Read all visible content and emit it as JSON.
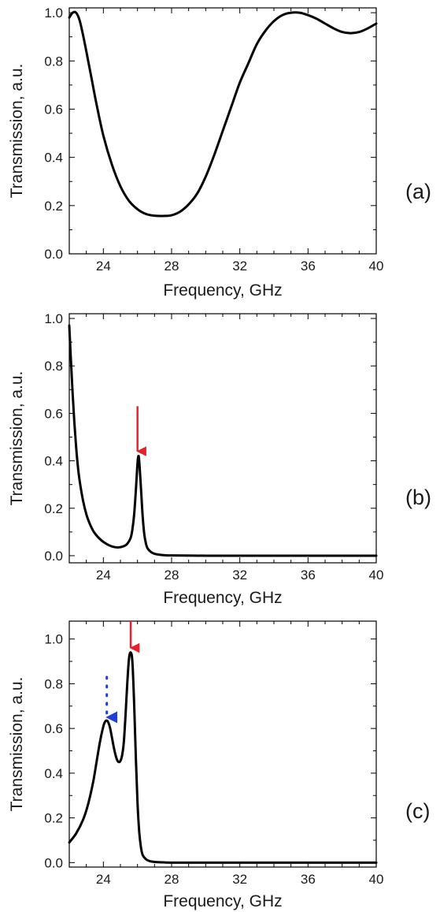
{
  "chart_data": [
    {
      "type": "line",
      "panel_label": "(a)",
      "xlabel": "Frequency, GHz",
      "ylabel": "Transmission, a.u.",
      "xlim": [
        22,
        40
      ],
      "ylim": [
        0.0,
        1.02
      ],
      "x_ticks": [
        24,
        28,
        32,
        36,
        40
      ],
      "y_ticks": [
        0.0,
        0.2,
        0.4,
        0.6,
        0.8,
        1.0
      ],
      "y_tick_labels": [
        "0.0",
        "0.2",
        "0.4",
        "0.6",
        "0.8",
        "1.0"
      ],
      "series": [
        {
          "x": [
            22.0,
            22.2,
            22.4,
            22.6,
            22.8,
            23.0,
            23.3,
            23.6,
            24.0,
            24.5,
            25.0,
            25.5,
            26.0,
            26.5,
            27.0,
            27.5,
            28.0,
            28.5,
            29.0,
            29.5,
            30.0,
            30.5,
            31.0,
            31.5,
            32.0,
            32.5,
            33.0,
            33.5,
            34.0,
            34.5,
            35.0,
            35.5,
            36.0,
            36.5,
            37.0,
            37.5,
            38.0,
            38.5,
            39.0,
            39.5,
            40.0
          ],
          "y": [
            0.98,
            1.0,
            1.0,
            0.97,
            0.91,
            0.84,
            0.73,
            0.62,
            0.49,
            0.37,
            0.28,
            0.22,
            0.185,
            0.165,
            0.158,
            0.157,
            0.16,
            0.175,
            0.205,
            0.25,
            0.32,
            0.41,
            0.51,
            0.61,
            0.71,
            0.79,
            0.87,
            0.925,
            0.965,
            0.99,
            1.0,
            1.0,
            0.99,
            0.975,
            0.955,
            0.935,
            0.92,
            0.915,
            0.92,
            0.935,
            0.955
          ]
        }
      ],
      "annotations": []
    },
    {
      "type": "line",
      "panel_label": "(b)",
      "xlabel": "Frequency, GHz",
      "ylabel": "Transmission, a.u.",
      "xlim": [
        22,
        40
      ],
      "ylim": [
        -0.03,
        1.02
      ],
      "x_ticks": [
        24,
        28,
        32,
        36,
        40
      ],
      "y_ticks": [
        0.0,
        0.2,
        0.4,
        0.6,
        0.8,
        1.0
      ],
      "y_tick_labels": [
        "0.0",
        "0.2",
        "0.4",
        "0.6",
        "0.8",
        "1.0"
      ],
      "series": [
        {
          "x": [
            22.0,
            22.1,
            22.2,
            22.3,
            22.4,
            22.5,
            22.6,
            22.8,
            23.0,
            23.2,
            23.4,
            23.6,
            23.8,
            24.0,
            24.3,
            24.6,
            24.9,
            25.2,
            25.4,
            25.6,
            25.7,
            25.8,
            25.9,
            26.0,
            26.05,
            26.1,
            26.2,
            26.3,
            26.4,
            26.5,
            26.6,
            26.8,
            27.0,
            27.3,
            27.6,
            28.0,
            30.0,
            32.0,
            34.0,
            36.0,
            38.0,
            40.0
          ],
          "y": [
            0.97,
            0.82,
            0.68,
            0.56,
            0.46,
            0.38,
            0.32,
            0.235,
            0.175,
            0.135,
            0.105,
            0.085,
            0.07,
            0.058,
            0.045,
            0.037,
            0.035,
            0.04,
            0.05,
            0.075,
            0.11,
            0.17,
            0.27,
            0.39,
            0.42,
            0.4,
            0.29,
            0.17,
            0.09,
            0.05,
            0.03,
            0.015,
            0.008,
            0.004,
            0.002,
            0.001,
            0.0,
            0.0,
            0.0,
            0.0,
            0.0,
            0.0
          ]
        }
      ],
      "annotations": [
        {
          "kind": "arrow",
          "style": "solid",
          "color": "#e8202a",
          "x": 26.0,
          "y_from": 0.63,
          "y_to": 0.44
        }
      ]
    },
    {
      "type": "line",
      "panel_label": "(c)",
      "xlabel": "Frequency, GHz",
      "ylabel": "Transmission, a.u.",
      "xlim": [
        22,
        40
      ],
      "ylim": [
        -0.02,
        1.08
      ],
      "x_ticks": [
        24,
        28,
        32,
        36,
        40
      ],
      "y_ticks": [
        0.0,
        0.2,
        0.4,
        0.6,
        0.8,
        1.0
      ],
      "y_tick_labels": [
        "0.0",
        "0.2",
        "0.4",
        "0.6",
        "0.8",
        "1.0"
      ],
      "series": [
        {
          "x": [
            22.0,
            22.4,
            22.8,
            23.1,
            23.4,
            23.6,
            23.8,
            24.0,
            24.1,
            24.2,
            24.3,
            24.4,
            24.5,
            24.6,
            24.7,
            24.8,
            24.9,
            25.0,
            25.1,
            25.2,
            25.3,
            25.4,
            25.5,
            25.6,
            25.7,
            25.8,
            25.9,
            26.0,
            26.1,
            26.2,
            26.3,
            26.5,
            26.7,
            27.0,
            27.5,
            28.0,
            30.0,
            32.0,
            34.0,
            36.0,
            38.0,
            40.0
          ],
          "y": [
            0.09,
            0.13,
            0.19,
            0.26,
            0.36,
            0.45,
            0.54,
            0.61,
            0.63,
            0.635,
            0.625,
            0.6,
            0.56,
            0.52,
            0.485,
            0.46,
            0.45,
            0.455,
            0.48,
            0.54,
            0.66,
            0.8,
            0.91,
            0.94,
            0.9,
            0.72,
            0.48,
            0.27,
            0.14,
            0.07,
            0.035,
            0.015,
            0.007,
            0.003,
            0.001,
            0.0,
            0.0,
            0.0,
            0.0,
            0.0,
            0.0,
            0.0
          ]
        }
      ],
      "annotations": [
        {
          "kind": "arrow",
          "style": "solid",
          "color": "#e8202a",
          "x": 25.6,
          "y_from": 1.08,
          "y_to": 0.96
        },
        {
          "kind": "arrow",
          "style": "dotted",
          "color": "#1f3fd6",
          "x": 24.2,
          "y_from": 0.83,
          "y_to": 0.65
        }
      ]
    }
  ],
  "colors": {
    "red_arrow": "#e8202a",
    "blue_arrow": "#1f3fd6",
    "curve": "#000000"
  }
}
